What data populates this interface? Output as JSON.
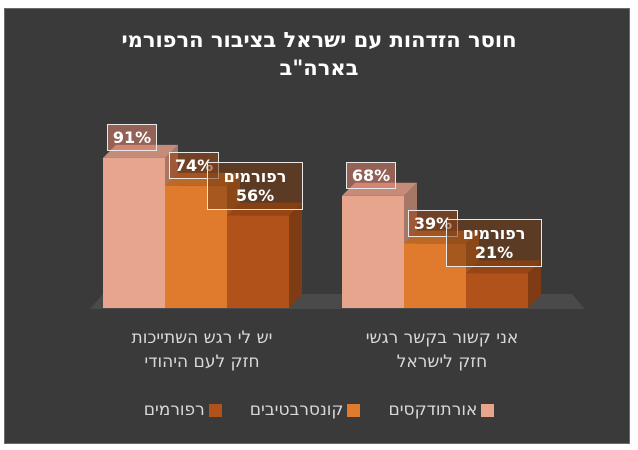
{
  "title_line1": "חוסר הזדהות עם ישראל בציבור הרפורמי",
  "title_line2": "בארה\"ב",
  "chart_data": {
    "type": "bar",
    "categories": [
      "יש לי רגש השתייכות חזק לעם היהודי",
      "אני קשור בקשר רגשי חזק לישראל"
    ],
    "series": [
      {
        "name": "אורתודקסים",
        "values": [
          91,
          68
        ],
        "color": "#e8a58e"
      },
      {
        "name": "קונסרבטיבים",
        "values": [
          74,
          39
        ],
        "color": "#e07a2c"
      },
      {
        "name": "רפורמים",
        "values": [
          56,
          21
        ],
        "color": "#b0521a"
      }
    ],
    "ylim": [
      0,
      100
    ],
    "value_suffix": "%",
    "reform_label": "רפורמים",
    "legend_position": "bottom",
    "grid": false
  },
  "category_labels": [
    {
      "line1": "יש לי רגש השתייכות",
      "line2": "חזק לעם היהודי"
    },
    {
      "line1": "אני קשור בקשר רגשי",
      "line2": "חזק לישראל"
    }
  ]
}
